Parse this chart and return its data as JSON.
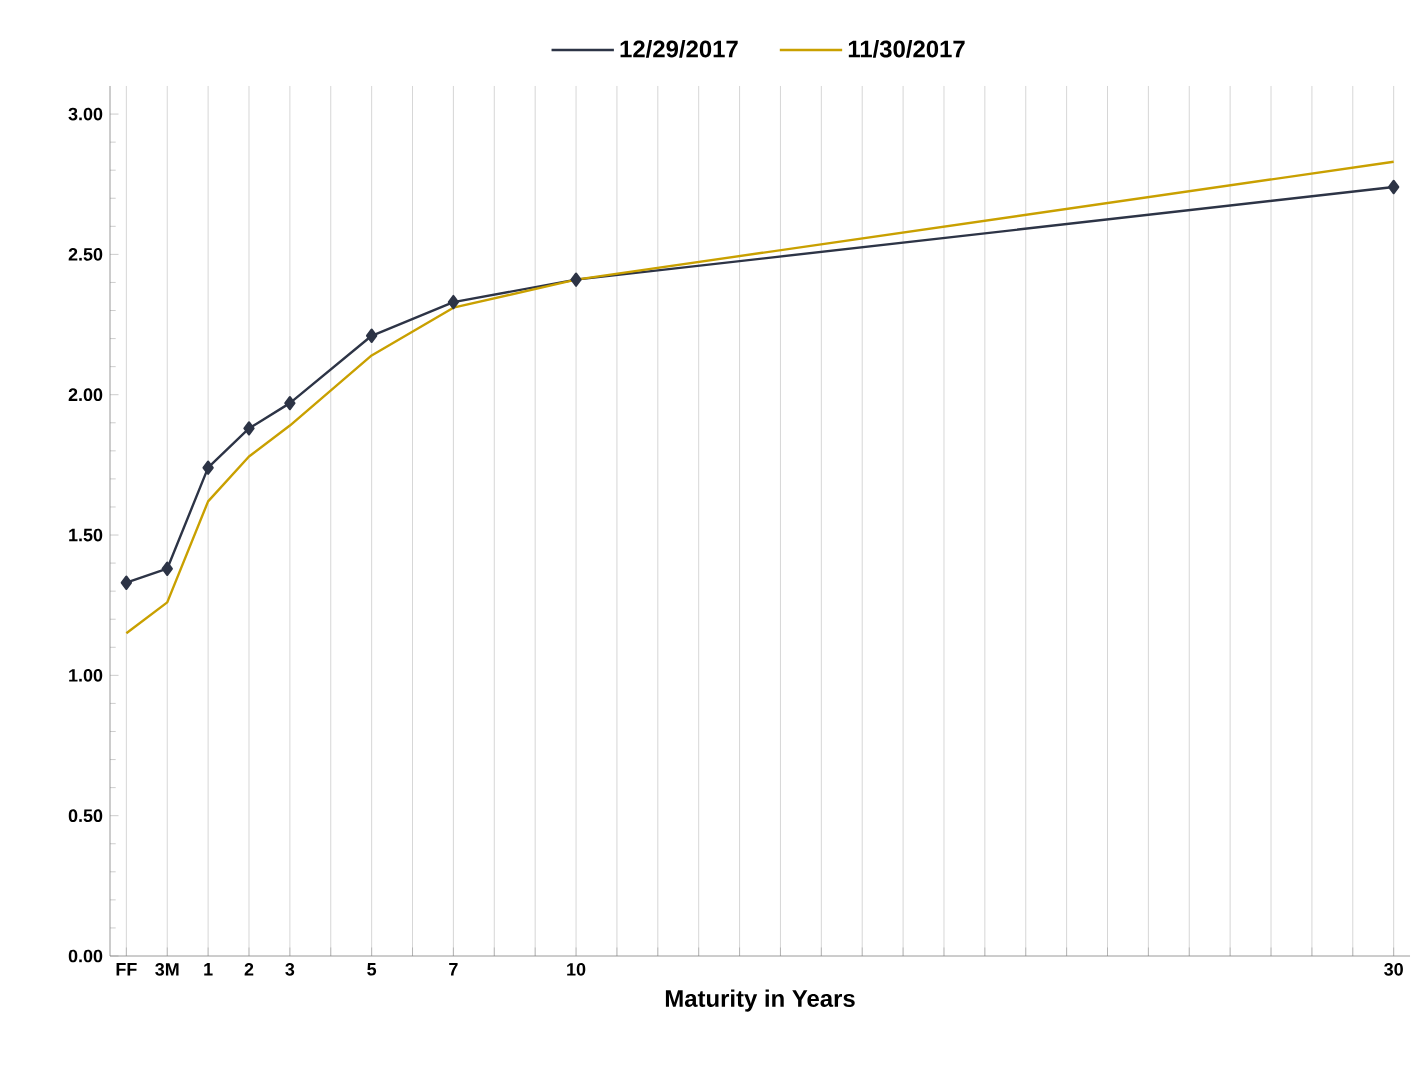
{
  "chart_data": {
    "type": "line",
    "xlabel": "Maturity in Years",
    "categories": [
      "FF",
      "3M",
      "1",
      "2",
      "3",
      null,
      "5",
      null,
      "7",
      null,
      null,
      "10",
      null,
      null,
      null,
      null,
      null,
      null,
      null,
      null,
      null,
      null,
      null,
      null,
      null,
      null,
      null,
      null,
      null,
      null,
      null,
      "30"
    ],
    "series": [
      {
        "name": "12/29/2017",
        "color": "#2d3446",
        "marker": "diamond",
        "values": [
          1.33,
          1.38,
          1.74,
          1.88,
          1.97,
          null,
          2.21,
          null,
          2.33,
          null,
          null,
          2.41,
          null,
          null,
          null,
          null,
          null,
          null,
          null,
          null,
          null,
          null,
          null,
          null,
          null,
          null,
          null,
          null,
          null,
          null,
          null,
          2.74
        ]
      },
      {
        "name": "11/30/2017",
        "color": "#c9a000",
        "marker": "none",
        "values": [
          1.15,
          1.26,
          1.62,
          1.78,
          1.89,
          null,
          2.14,
          null,
          2.31,
          null,
          null,
          2.41,
          null,
          null,
          null,
          null,
          null,
          null,
          null,
          null,
          null,
          null,
          null,
          null,
          null,
          null,
          null,
          null,
          null,
          null,
          null,
          2.83
        ]
      }
    ],
    "ylim": [
      0,
      3.1
    ],
    "yticks": [
      {
        "value": 0,
        "label": "0.00"
      },
      {
        "value": 0.5,
        "label": "0.50"
      },
      {
        "value": 1,
        "label": "1.00"
      },
      {
        "value": 1.5,
        "label": "1.50"
      },
      {
        "value": 2,
        "label": "2.00"
      },
      {
        "value": 2.5,
        "label": "2.50"
      },
      {
        "value": 3,
        "label": "3.00"
      }
    ],
    "grid": "x",
    "legend": "top",
    "line_style": "solid"
  }
}
